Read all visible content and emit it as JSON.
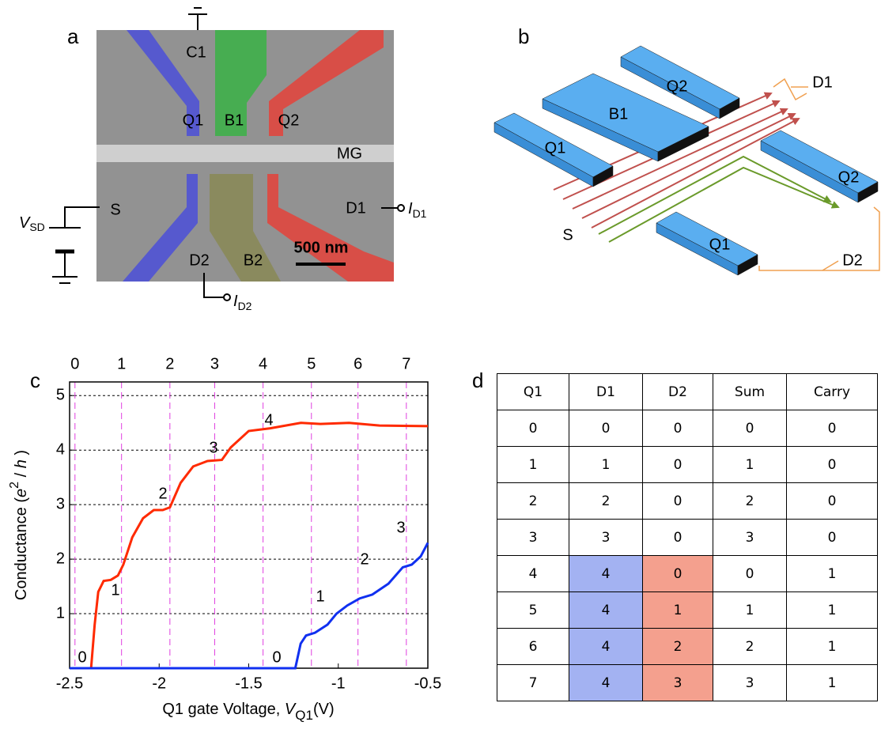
{
  "panel_a": {
    "label": "a",
    "labels": [
      "C1",
      "Q1",
      "B1",
      "Q2",
      "MG",
      "S",
      "D1",
      "D2",
      "B2"
    ],
    "scale_bar": "500 nm",
    "V_SD": {
      "symbol": "V",
      "sub": "SD"
    },
    "I_D1": {
      "symbol": "I",
      "sub": "D1"
    },
    "I_D2": {
      "symbol": "I",
      "sub": "D2"
    }
  },
  "panel_b": {
    "label": "b",
    "labels": [
      "B1",
      "Q2",
      "Q1",
      "Q2",
      "Q1",
      "S",
      "D1",
      "D2"
    ]
  },
  "chart_data": {
    "type": "line",
    "panel_label": "c",
    "xlabel": [
      "Q1 gate Voltage, ",
      "V",
      "Q1",
      "(V)"
    ],
    "ylabel": [
      "Conductance (",
      "e",
      "2",
      " / ",
      "h",
      " )"
    ],
    "xlim": [
      -2.5,
      -0.5
    ],
    "xticks": [
      -2.5,
      -2,
      -1.5,
      -1,
      -0.5
    ],
    "ylim": [
      0,
      5.25
    ],
    "yticks": [
      1,
      2,
      3,
      4,
      5
    ],
    "grid": true,
    "x2ticks": [
      {
        "value": -2.47,
        "label": "0"
      },
      {
        "value": -2.21,
        "label": "1"
      },
      {
        "value": -1.94,
        "label": "2"
      },
      {
        "value": -1.69,
        "label": "3"
      },
      {
        "value": -1.42,
        "label": "4"
      },
      {
        "value": -1.15,
        "label": "5"
      },
      {
        "value": -0.89,
        "label": "6"
      },
      {
        "value": -0.62,
        "label": "7"
      }
    ],
    "x2color": "#ff2a1a",
    "series": [
      {
        "color": "#ff2a00",
        "x": [
          -2.5,
          -2.38,
          -2.36,
          -2.34,
          -2.31,
          -2.27,
          -2.23,
          -2.2,
          -2.15,
          -2.09,
          -2.03,
          -1.98,
          -1.94,
          -1.88,
          -1.81,
          -1.73,
          -1.65,
          -1.6,
          -1.5,
          -1.38,
          -1.21,
          -1.1,
          -0.94,
          -0.77,
          -0.5
        ],
        "values": [
          0,
          0,
          0.8,
          1.4,
          1.6,
          1.62,
          1.7,
          1.9,
          2.4,
          2.75,
          2.9,
          2.9,
          2.95,
          3.4,
          3.7,
          3.8,
          3.82,
          4.05,
          4.35,
          4.4,
          4.5,
          4.48,
          4.5,
          4.45,
          4.44
        ],
        "annotations": [
          "0",
          "1",
          "2",
          "3",
          "4"
        ]
      },
      {
        "color": "#1030f0",
        "x": [
          -2.5,
          -1.24,
          -1.21,
          -1.18,
          -1.13,
          -1.06,
          -1.01,
          -0.95,
          -0.88,
          -0.81,
          -0.72,
          -0.64,
          -0.59,
          -0.54,
          -0.5
        ],
        "values": [
          0,
          0,
          0.45,
          0.6,
          0.65,
          0.8,
          1.0,
          1.15,
          1.28,
          1.35,
          1.55,
          1.85,
          1.9,
          2.05,
          2.3
        ],
        "annotations": [
          "0",
          "1",
          "2",
          "3"
        ]
      }
    ]
  },
  "table": {
    "label": "d",
    "header": [
      "Q1",
      "D1",
      "D2",
      "Sum",
      "Carry"
    ],
    "rows": [
      [
        0,
        0,
        0,
        0,
        0
      ],
      [
        1,
        1,
        0,
        1,
        0
      ],
      [
        2,
        2,
        0,
        2,
        0
      ],
      [
        3,
        3,
        0,
        3,
        0
      ],
      [
        4,
        4,
        0,
        0,
        1
      ],
      [
        5,
        4,
        1,
        1,
        1
      ],
      [
        6,
        4,
        2,
        2,
        1
      ],
      [
        7,
        4,
        3,
        3,
        1
      ]
    ]
  }
}
